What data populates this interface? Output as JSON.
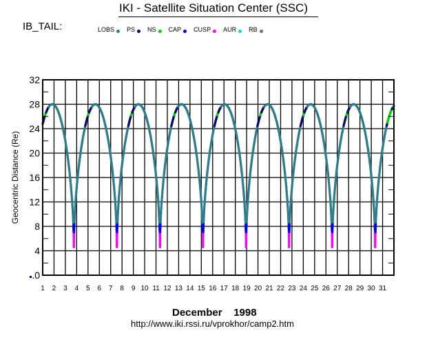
{
  "header": {
    "title": "IKI - Satellite Situation Center (SSC)",
    "region_label": "IB_TAIL:"
  },
  "legend": [
    {
      "name": "LOBS",
      "color": "#2e7d8c"
    },
    {
      "name": "PS",
      "color": "#0a0a6e"
    },
    {
      "name": "NS",
      "color": "#00d400"
    },
    {
      "name": "CAP",
      "color": "#0000f0"
    },
    {
      "name": "CUSP",
      "color": "#ff00ff"
    },
    {
      "name": "AUR",
      "color": "#00e0e0"
    },
    {
      "name": "RB",
      "color": "#707070"
    }
  ],
  "footer": {
    "month_year": "December    1998",
    "url": "http://www.iki.rssi.ru/vprokhor/camp2.htm"
  },
  "chart_data": {
    "type": "line",
    "title": "IKI - Satellite Situation Center (SSC)",
    "xlabel": "December    1998",
    "ylabel": "Geocentric Distance (Re)",
    "xlim": [
      1,
      32
    ],
    "ylim": [
      0,
      32
    ],
    "x_ticks": [
      "1",
      "2",
      "3",
      "4",
      "5",
      "6",
      "7",
      "8",
      "9",
      "10",
      "11",
      "12",
      "13",
      "14",
      "15",
      "16",
      "17",
      "18",
      "19",
      "20",
      "21",
      "22",
      "23",
      "24",
      "25",
      "26",
      "27",
      "28",
      "29",
      "30",
      "31"
    ],
    "y_ticks": [
      ".0",
      "4",
      "8",
      "12",
      "16",
      "20",
      "24",
      "28",
      "32"
    ],
    "grid": true,
    "legend_position": "top",
    "orbit": {
      "apogee_re": 28,
      "perigee_re": 4.6,
      "period_days": 3.8,
      "start": {
        "day": 1,
        "distance": 24
      },
      "perigee_days": [
        3.75,
        7.55,
        11.35,
        15.15,
        18.95,
        22.75,
        26.55,
        30.35
      ],
      "apogee_days": [
        1.85,
        5.65,
        9.45,
        13.25,
        17.05,
        20.85,
        24.65,
        28.45
      ],
      "end": {
        "day": 32,
        "distance": 28
      }
    },
    "series": [
      {
        "name": "LOBS",
        "description": "default region along most of orbit"
      },
      {
        "name": "PS",
        "description": "ascending leg segments near apogee, approx 23-28 Re"
      },
      {
        "name": "NS",
        "description": "short segments near 26-27 Re, long segment at end of day 31"
      },
      {
        "name": "CAP",
        "description": "near perigee, approx 6-9 Re"
      },
      {
        "name": "CUSP",
        "description": "near perigee, approx 6-8 Re"
      },
      {
        "name": "AUR",
        "description": "near perigee, approx 5-6 Re"
      },
      {
        "name": "RB",
        "description": "perigee, approx 4.6-5 Re"
      }
    ]
  }
}
